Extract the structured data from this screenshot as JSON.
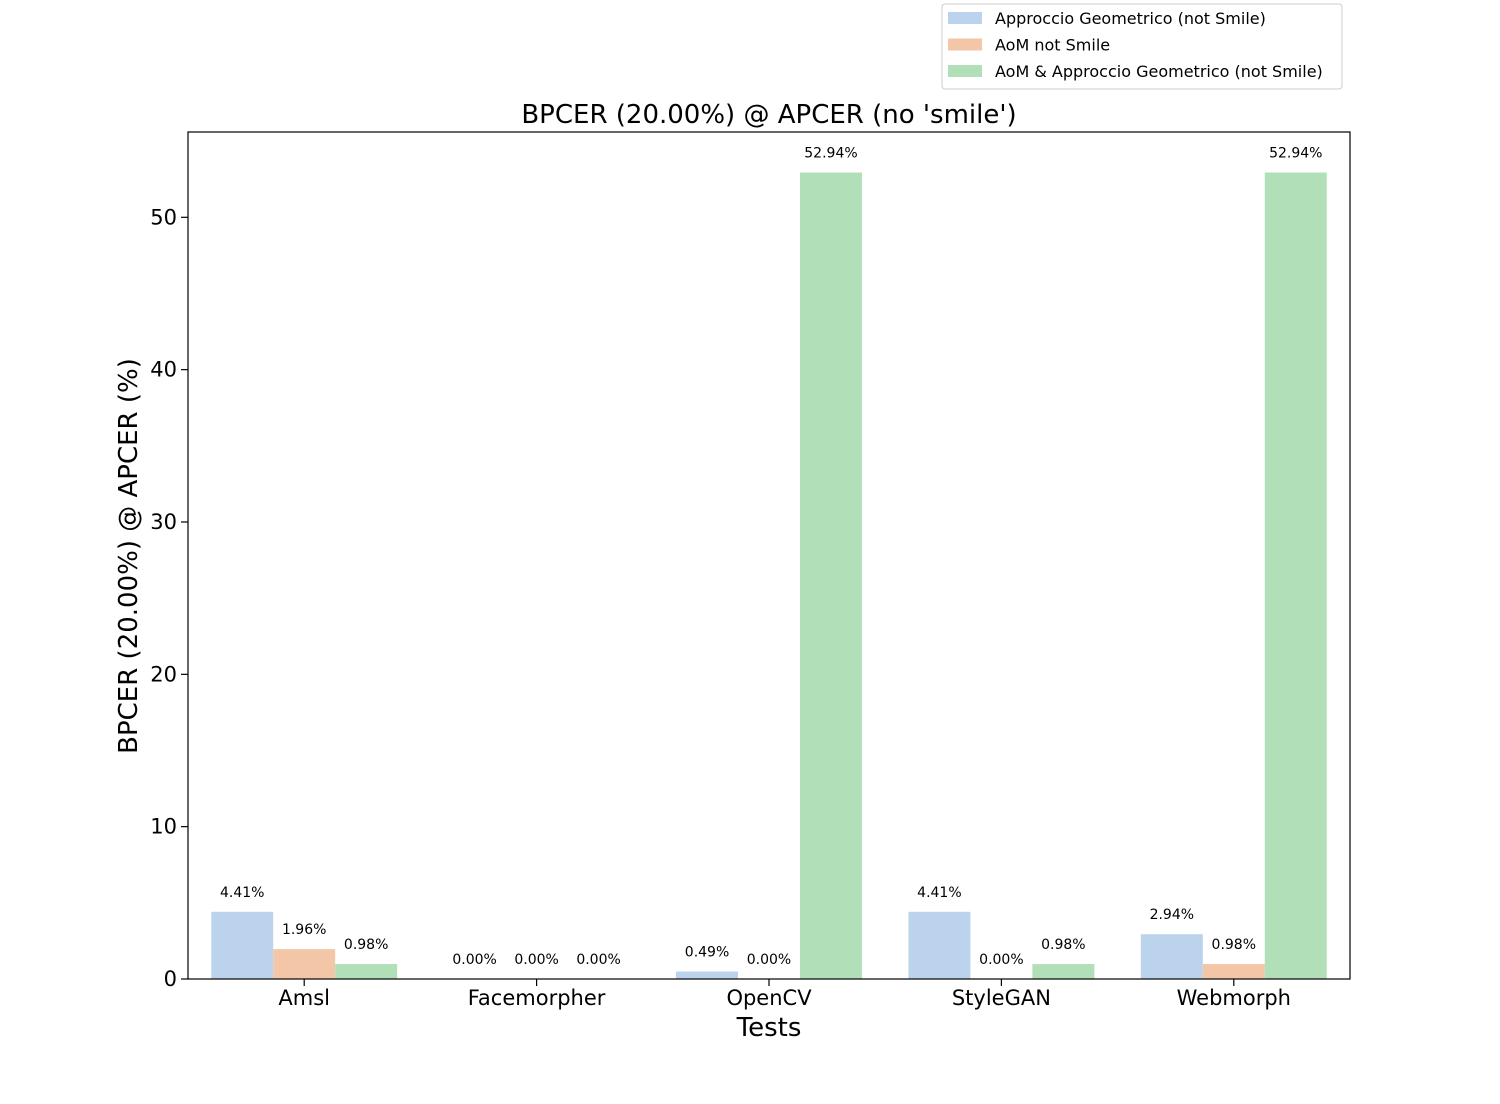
{
  "chart_data": {
    "type": "bar",
    "title": "BPCER (20.00%) @ APCER (no 'smile')",
    "xlabel": "Tests",
    "ylabel": "BPCER (20.00%) @ APCER (%)",
    "categories": [
      "Amsl",
      "Facemorpher",
      "OpenCV",
      "StyleGAN",
      "Webmorph"
    ],
    "ylim": [
      0,
      55.6
    ],
    "yticks": [
      "0",
      "10",
      "20",
      "30",
      "40",
      "50"
    ],
    "grid": false,
    "legend_position": "top-right",
    "series": [
      {
        "name": "Approccio Geometrico (not Smile)",
        "color": "#bcd3ee",
        "values": [
          4.41,
          0.0,
          0.49,
          4.41,
          2.94
        ],
        "labels": [
          "4.41%",
          "0.00%",
          "0.49%",
          "4.41%",
          "2.94%"
        ]
      },
      {
        "name": "AoM not Smile",
        "color": "#f2c6a7",
        "values": [
          1.96,
          0.0,
          0.0,
          0.0,
          0.98
        ],
        "labels": [
          "1.96%",
          "0.00%",
          "0.00%",
          "0.00%",
          "0.98%"
        ]
      },
      {
        "name": "AoM & Approccio Geometrico (not Smile)",
        "color": "#b0dfb8",
        "values": [
          0.98,
          0.0,
          52.94,
          0.98,
          52.94
        ],
        "labels": [
          "0.98%",
          "0.00%",
          "52.94%",
          "0.98%",
          "52.94%"
        ]
      }
    ]
  }
}
